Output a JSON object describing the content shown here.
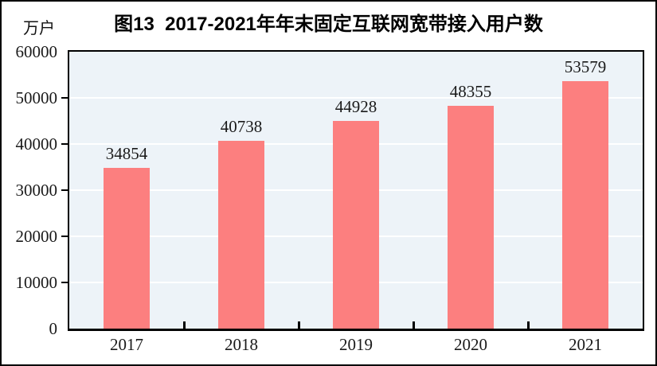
{
  "figure": {
    "title": "图13  2017-2021年年末固定互联网宽带接入用户数",
    "unit_label": "万户"
  },
  "chart_data": {
    "type": "bar",
    "title": "图13  2017-2021年年末固定互联网宽带接入用户数",
    "ylabel_unit": "万户",
    "categories": [
      "2017",
      "2018",
      "2019",
      "2020",
      "2021"
    ],
    "values": [
      34854,
      40738,
      44928,
      48355,
      53579
    ],
    "ylim": [
      0,
      60000
    ],
    "ytick_interval": 10000,
    "yticks": [
      0,
      10000,
      20000,
      30000,
      40000,
      50000,
      60000
    ],
    "grid": true,
    "legend": "none",
    "colors": {
      "bar": "#fc7f7f",
      "plot_background": "#edf3f8",
      "gridline": "#ffffff",
      "axis": "#000000",
      "text": "#1a1a1a"
    }
  }
}
